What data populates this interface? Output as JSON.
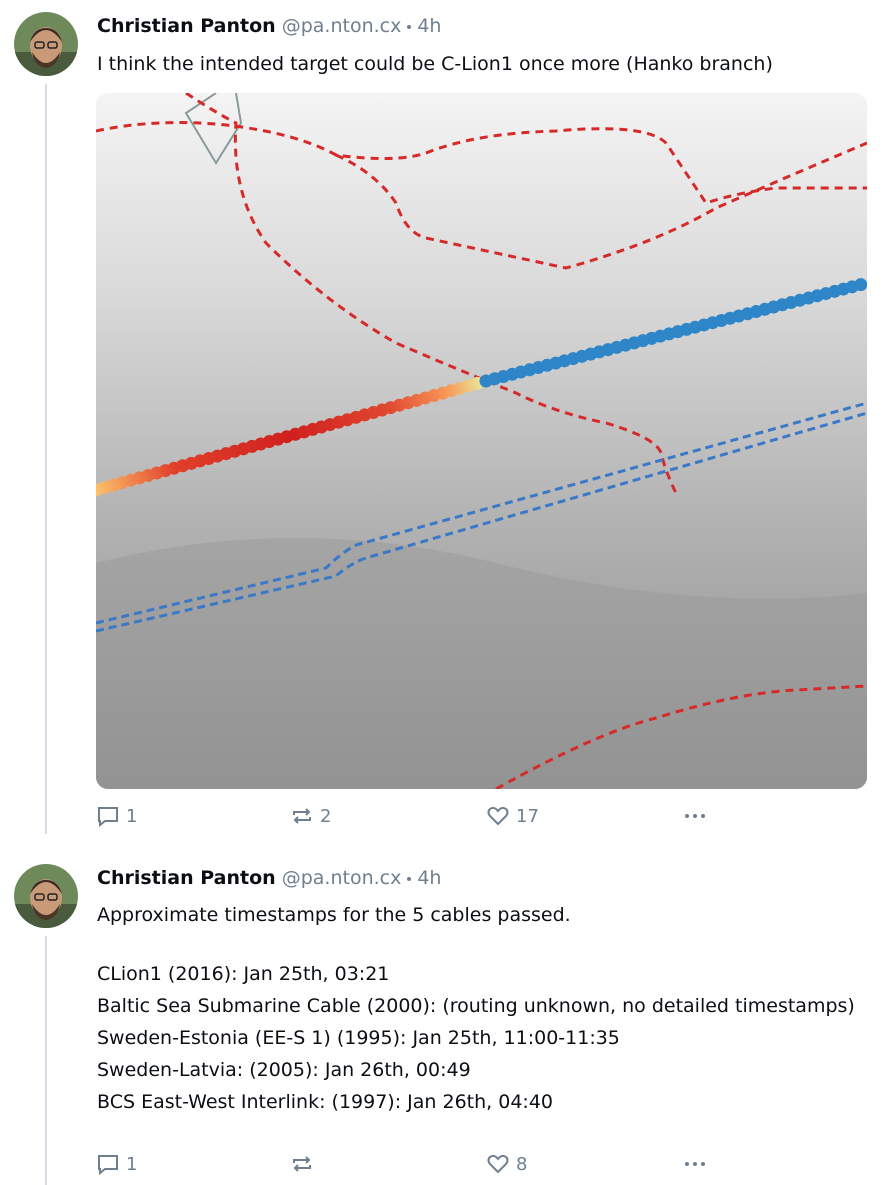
{
  "posts": [
    {
      "author": "Christian Panton",
      "handle": "@pa.nton.cx",
      "time": "4h",
      "text": "I think the intended target could be C-Lion1 once more (Hanko branch)",
      "replies": 1,
      "reposts": 2,
      "likes": 17
    },
    {
      "author": "Christian Panton",
      "handle": "@pa.nton.cx",
      "time": "4h",
      "text": "Approximate timestamps for the 5 cables passed.",
      "lines": [
        "CLion1 (2016): Jan 25th, 03:21",
        "Baltic Sea Submarine Cable (2000): (routing unknown, no detailed timestamps)",
        "Sweden-Estonia (EE-S 1) (1995): Jan 25th, 11:00-11:35",
        "Sweden-Latvia: (2005): Jan 26th, 00:49",
        "BCS East-West Interlink: (1997): Jan 26th, 04:40"
      ],
      "replies": 1,
      "likes": 8
    }
  ]
}
